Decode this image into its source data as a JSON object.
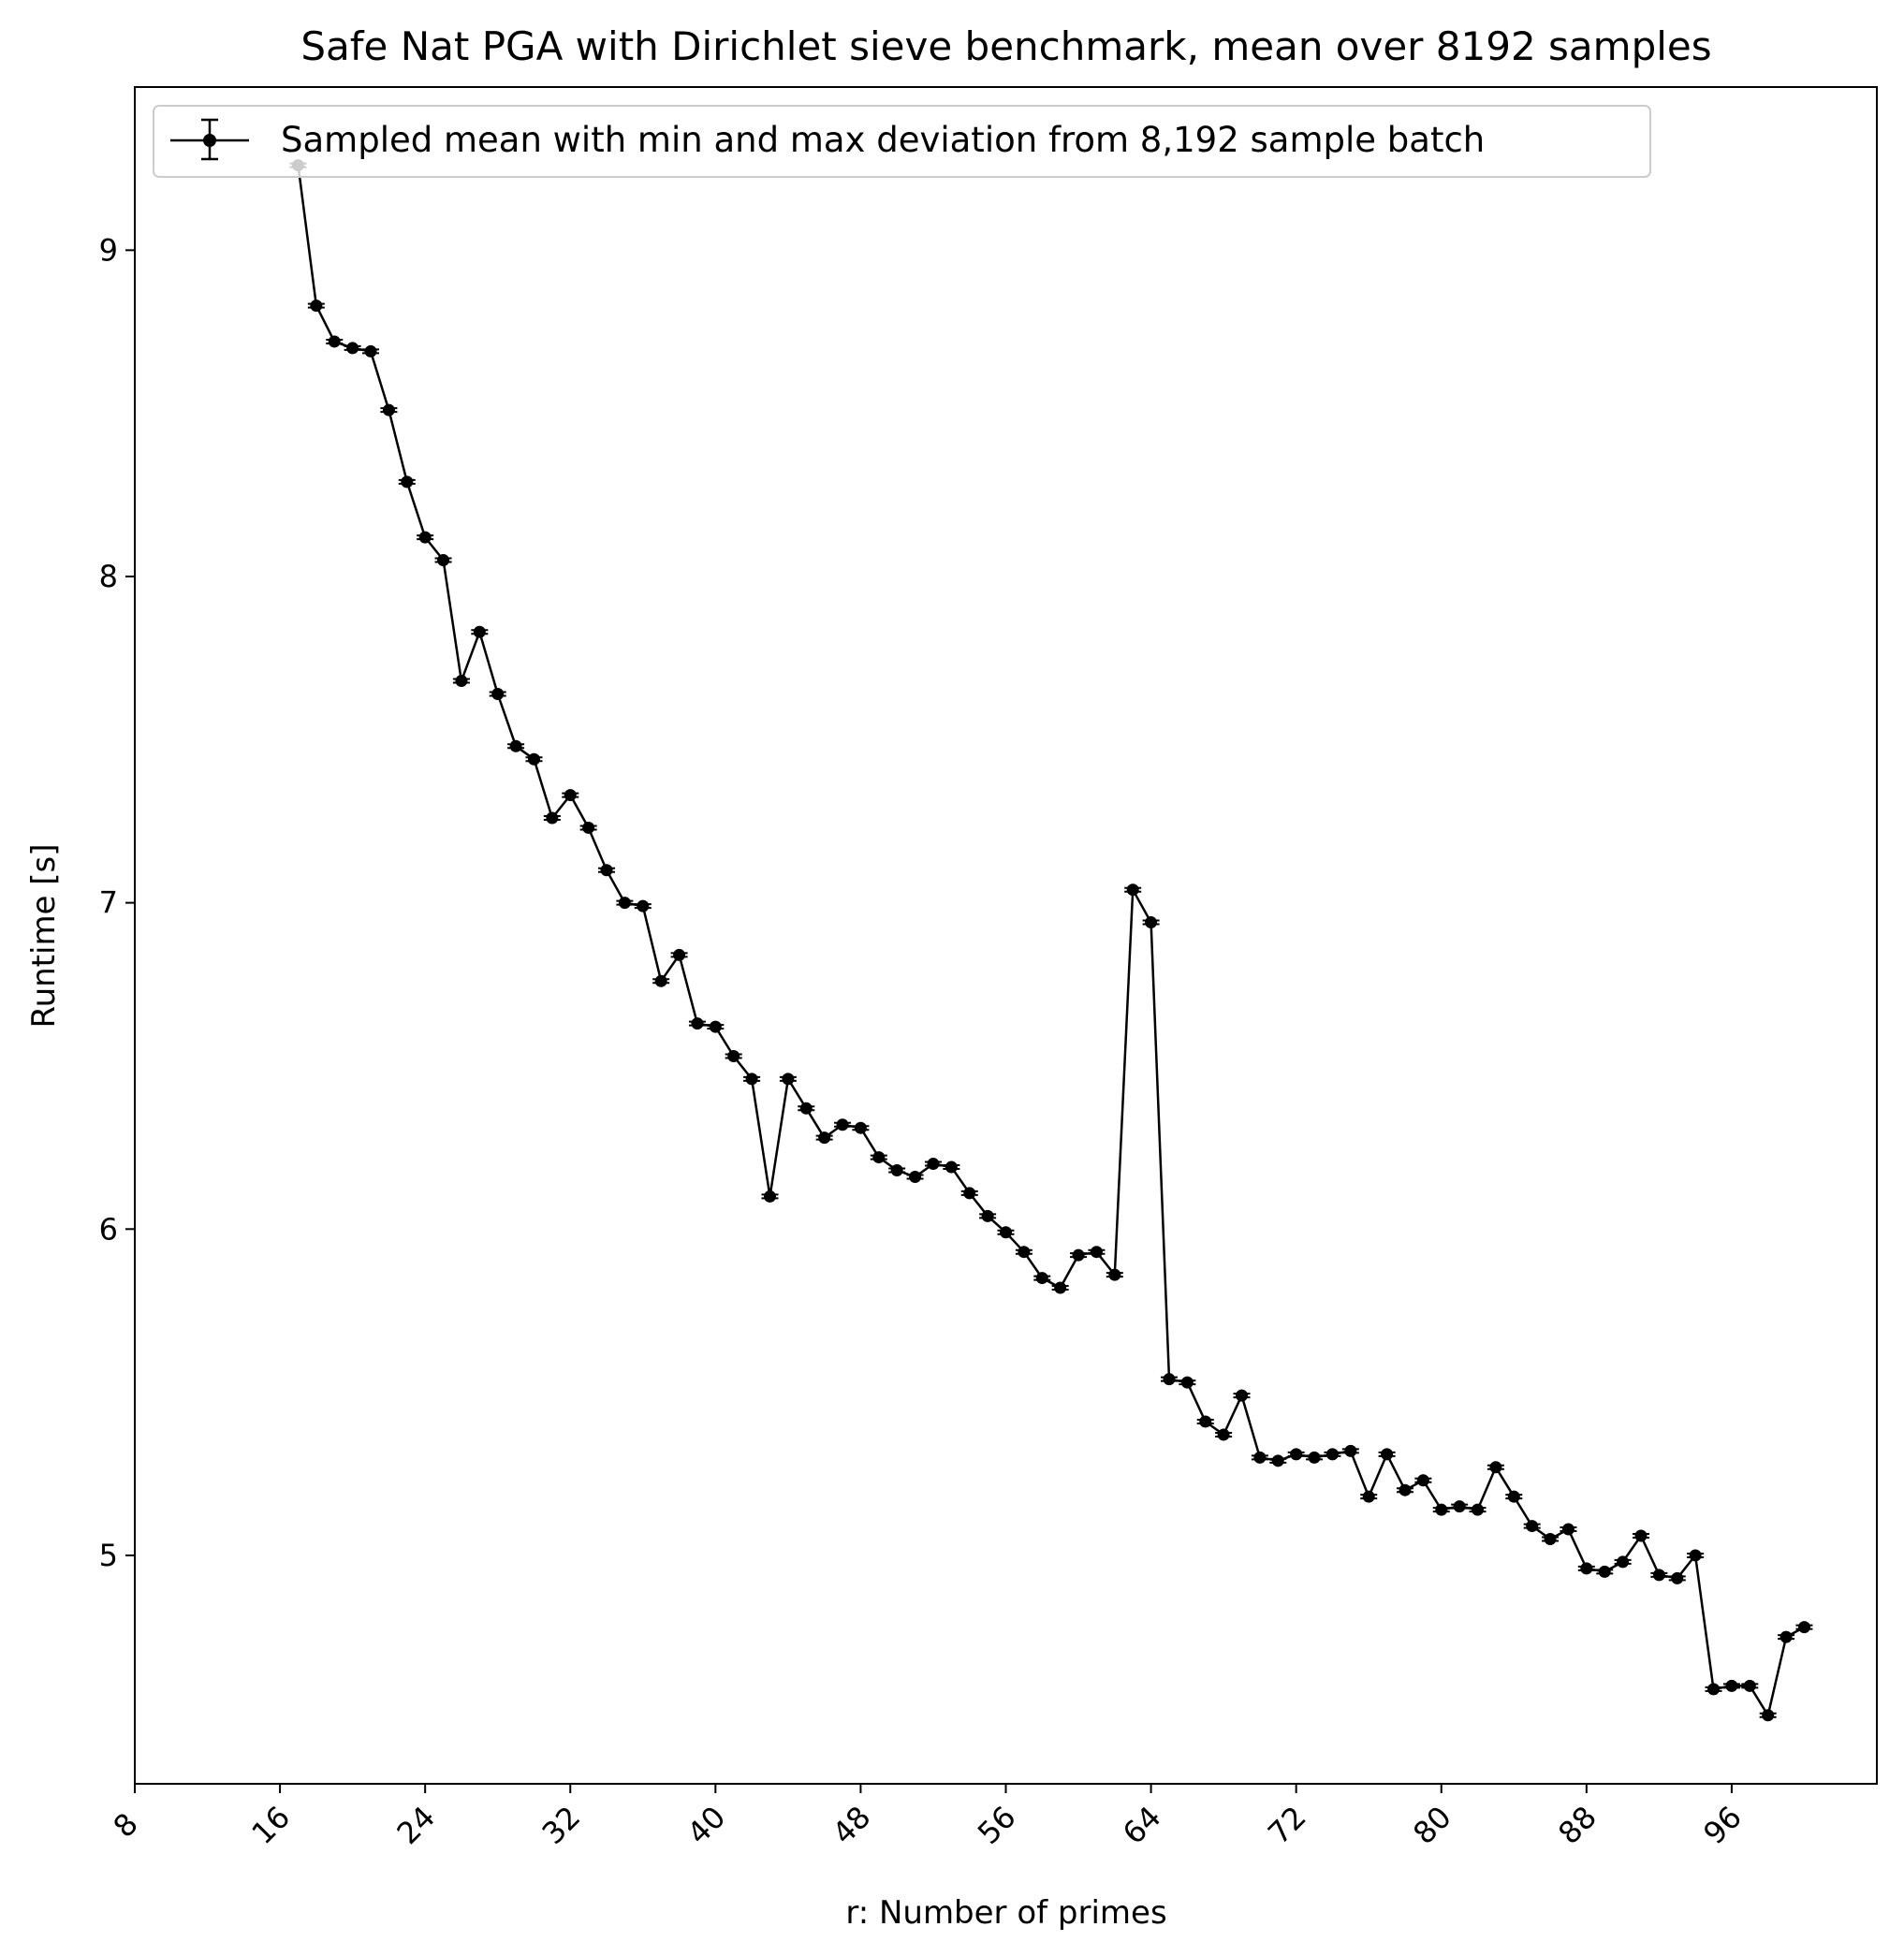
{
  "chart_data": {
    "type": "line",
    "title": "Safe Nat PGA with Dirichlet sieve benchmark, mean over 8192 samples",
    "xlabel": "r: Number of primes",
    "ylabel": "Runtime [s]",
    "xlim": [
      8,
      104
    ],
    "ylim": [
      4.3,
      9.5
    ],
    "xticks": [
      8,
      16,
      24,
      32,
      40,
      48,
      56,
      64,
      72,
      80,
      88,
      96
    ],
    "yticks": [
      5,
      6,
      7,
      8,
      9
    ],
    "xtick_labels": [
      "8",
      "16",
      "24",
      "32",
      "40",
      "48",
      "56",
      "64",
      "72",
      "80",
      "88",
      "96"
    ],
    "ytick_labels": [
      "5",
      "6",
      "7",
      "8",
      "9"
    ],
    "legend_placement": "upper-left",
    "grid": false,
    "series": [
      {
        "name": "Sampled mean with min and max deviation from 8,192 sample batch",
        "color": "#000000",
        "marker": "circle",
        "errorbars": "min/max",
        "x": [
          17,
          18,
          19,
          20,
          21,
          22,
          23,
          24,
          25,
          26,
          27,
          28,
          29,
          30,
          31,
          32,
          33,
          34,
          35,
          36,
          37,
          38,
          39,
          40,
          41,
          42,
          43,
          44,
          45,
          46,
          47,
          48,
          49,
          50,
          51,
          52,
          53,
          54,
          55,
          56,
          57,
          58,
          59,
          60,
          61,
          62,
          63,
          64,
          65,
          66,
          67,
          68,
          69,
          70,
          71,
          72,
          73,
          74,
          75,
          76,
          77,
          78,
          79,
          80,
          81,
          82,
          83,
          84,
          85,
          86,
          87,
          88,
          89,
          90,
          91,
          92,
          93,
          94,
          95,
          96,
          97,
          98,
          99,
          100
        ],
        "y": [
          9.26,
          8.83,
          8.72,
          8.7,
          8.69,
          8.51,
          8.29,
          8.12,
          8.05,
          7.68,
          7.83,
          7.64,
          7.48,
          7.44,
          7.26,
          7.33,
          7.23,
          7.1,
          7.0,
          6.99,
          6.76,
          6.84,
          6.63,
          6.62,
          6.53,
          6.46,
          6.1,
          6.46,
          6.37,
          6.28,
          6.32,
          6.31,
          6.22,
          6.18,
          6.16,
          6.2,
          6.19,
          6.11,
          6.04,
          5.99,
          5.93,
          5.85,
          5.82,
          5.92,
          5.93,
          5.86,
          7.04,
          6.94,
          5.54,
          5.53,
          5.41,
          5.37,
          5.49,
          5.3,
          5.29,
          5.31,
          5.3,
          5.31,
          5.32,
          5.18,
          5.31,
          5.2,
          5.23,
          5.14,
          5.15,
          5.14,
          5.27,
          5.18,
          5.09,
          5.05,
          5.08,
          4.96,
          4.95,
          4.98,
          5.06,
          4.94,
          4.93,
          5.0,
          4.59,
          4.6,
          4.6,
          4.51,
          4.75,
          4.78
        ]
      }
    ]
  }
}
